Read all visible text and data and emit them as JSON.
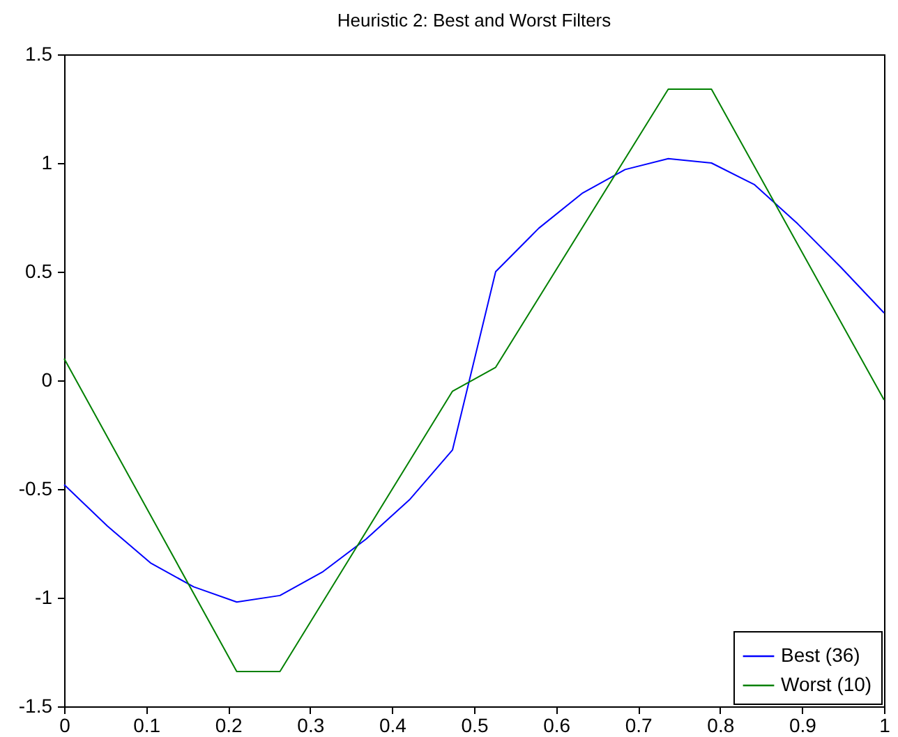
{
  "chart_data": {
    "type": "line",
    "title": "Heuristic 2: Best and Worst Filters",
    "x": [
      0,
      0.0526,
      0.1053,
      0.1579,
      0.2105,
      0.2632,
      0.3158,
      0.3684,
      0.4211,
      0.4737,
      0.5263,
      0.5789,
      0.6316,
      0.6842,
      0.7368,
      0.7895,
      0.8421,
      0.8947,
      0.9474,
      1
    ],
    "series": [
      {
        "name": "Best (36)",
        "color": "#0000ff",
        "values": [
          -0.48,
          -0.67,
          -0.84,
          -0.95,
          -1.02,
          -0.99,
          -0.88,
          -0.73,
          -0.55,
          -0.32,
          0.5,
          0.7,
          0.86,
          0.97,
          1.02,
          1.0,
          0.9,
          0.72,
          0.52,
          0.31
        ]
      },
      {
        "name": "Worst (10)",
        "color": "#008000",
        "x": [
          0,
          0.2105,
          0.2632,
          0.4737,
          0.5263,
          0.7368,
          0.7895,
          1
        ],
        "values": [
          0.1,
          -1.34,
          -1.34,
          -0.05,
          0.06,
          1.34,
          1.34,
          -0.09
        ]
      }
    ],
    "xlim": [
      0,
      1
    ],
    "xticks": [
      0,
      0.1,
      0.2,
      0.3,
      0.4,
      0.5,
      0.6,
      0.7,
      0.8,
      0.9,
      1
    ],
    "ylim": [
      -1.5,
      1.5
    ],
    "yticks": [
      -1.5,
      -1,
      -0.5,
      0,
      0.5,
      1,
      1.5
    ],
    "grid": false,
    "legend": "bottom right",
    "marker": "none",
    "line_style": "solid"
  }
}
